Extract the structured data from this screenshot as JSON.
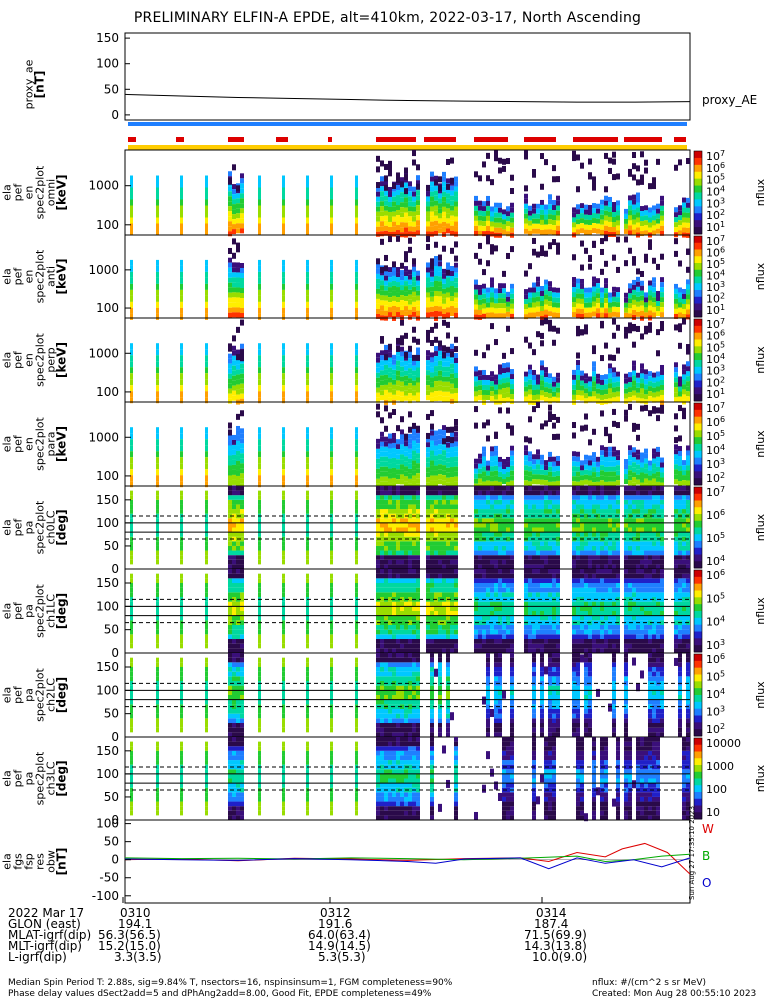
{
  "title": "PRELIMINARY ELFIN-A EPDE, alt=410km, 2022-03-17, North Ascending",
  "panels": [
    {
      "id": "proxy_ae",
      "ylabel": [
        "proxy_ae",
        "[nT]"
      ],
      "yticks": [
        "150",
        "100",
        "50",
        "0"
      ],
      "right_label": "proxy_AE",
      "type": "line"
    },
    {
      "id": "en0",
      "ylabel": [
        "ela",
        "pef",
        "en",
        "spec2plot",
        "omni",
        "[keV]"
      ],
      "yticks": [
        "1000",
        "100"
      ],
      "type": "spec",
      "colorbar": [
        "10^7",
        "10^6",
        "10^5",
        "10^4",
        "10^3",
        "10^2",
        "10^1"
      ],
      "cblabel": "nflux"
    },
    {
      "id": "en1",
      "ylabel": [
        "ela",
        "pef",
        "en",
        "spec2plot",
        "anti",
        "[keV]"
      ],
      "yticks": [
        "1000",
        "100"
      ],
      "type": "spec",
      "colorbar": [
        "10^7",
        "10^6",
        "10^5",
        "10^4",
        "10^3",
        "10^2",
        "10^1"
      ],
      "cblabel": "nflux"
    },
    {
      "id": "en2",
      "ylabel": [
        "ela",
        "pef",
        "en",
        "spec2plot",
        "perp",
        "[keV]"
      ],
      "yticks": [
        "1000",
        "100"
      ],
      "type": "spec",
      "colorbar": [
        "10^7",
        "10^6",
        "10^5",
        "10^4",
        "10^3",
        "10^2",
        "10^1"
      ],
      "cblabel": "nflux"
    },
    {
      "id": "en3",
      "ylabel": [
        "ela",
        "pef",
        "en",
        "spec2plot",
        "para",
        "[keV]"
      ],
      "yticks": [
        "1000",
        "100"
      ],
      "type": "spec",
      "colorbar": [
        "10^7",
        "10^6",
        "10^5",
        "10^4",
        "10^3",
        "10^2"
      ],
      "cblabel": "nflux"
    },
    {
      "id": "pa0",
      "ylabel": [
        "ela",
        "pef",
        "pa",
        "spec2plot",
        "ch0LC",
        "[deg]"
      ],
      "yticks": [
        "150",
        "100",
        "50",
        "0"
      ],
      "type": "pa",
      "colorbar": [
        "10^7",
        "10^6",
        "10^5",
        "10^4"
      ],
      "cblabel": "nflux"
    },
    {
      "id": "pa1",
      "ylabel": [
        "ela",
        "pef",
        "pa",
        "spec2plot",
        "ch1LC",
        "[deg]"
      ],
      "yticks": [
        "150",
        "100",
        "50",
        "0"
      ],
      "type": "pa",
      "colorbar": [
        "10^6",
        "10^5",
        "10^4",
        "10^3"
      ],
      "cblabel": "nflux"
    },
    {
      "id": "pa2",
      "ylabel": [
        "ela",
        "pef",
        "pa",
        "spec2plot",
        "ch2LC",
        "[deg]"
      ],
      "yticks": [
        "150",
        "100",
        "50",
        "0"
      ],
      "type": "pa",
      "colorbar": [
        "10^6",
        "10^5",
        "10^4",
        "10^3",
        "10^2"
      ],
      "cblabel": "nflux"
    },
    {
      "id": "pa3",
      "ylabel": [
        "ela",
        "pef",
        "pa",
        "spec2plot",
        "ch3LC",
        "[deg]"
      ],
      "yticks": [
        "150",
        "100",
        "50",
        "0"
      ],
      "type": "pa",
      "colorbar": [
        "10000",
        "1000",
        "100",
        "10"
      ],
      "cblabel": "nflux"
    },
    {
      "id": "fgs",
      "ylabel": [
        "ela",
        "fgs",
        "fsp",
        "res",
        "obw",
        "[nT]"
      ],
      "yticks": [
        "100",
        "50",
        "0",
        "-50",
        "-100"
      ],
      "type": "fgs",
      "legend": [
        "W",
        "B",
        "O"
      ]
    }
  ],
  "chart_data": {
    "type": "line",
    "title": "PRELIMINARY ELFIN-A EPDE, alt=410km, 2022-03-17, North Ascending",
    "proxy_ae": {
      "ylim": [
        -10,
        160
      ],
      "x": [
        0,
        0.1,
        0.2,
        0.3,
        0.4,
        0.5,
        0.6,
        0.7,
        0.8,
        0.9,
        1.0
      ],
      "y": [
        40,
        37,
        34,
        32,
        30,
        28,
        27,
        26,
        25,
        25,
        26
      ],
      "label": "proxy_AE"
    },
    "fgs_res": {
      "ylim": [
        -120,
        110
      ],
      "series": [
        {
          "name": "W",
          "color": "#dd0000",
          "x": [
            0,
            0.1,
            0.2,
            0.3,
            0.4,
            0.5,
            0.6,
            0.7,
            0.75,
            0.8,
            0.85,
            0.88,
            0.92,
            0.96,
            1.0
          ],
          "y": [
            0,
            2,
            -3,
            4,
            2,
            -2,
            3,
            5,
            -5,
            20,
            8,
            30,
            45,
            20,
            -40
          ]
        },
        {
          "name": "B",
          "color": "#00aa00",
          "x": [
            0,
            0.1,
            0.2,
            0.3,
            0.4,
            0.5,
            0.6,
            0.7,
            0.8,
            0.85,
            0.9,
            0.95,
            1.0
          ],
          "y": [
            5,
            3,
            4,
            2,
            5,
            3,
            0,
            4,
            10,
            -5,
            0,
            10,
            15
          ]
        },
        {
          "name": "O",
          "color": "#0000cc",
          "x": [
            0,
            0.1,
            0.2,
            0.3,
            0.4,
            0.5,
            0.55,
            0.6,
            0.7,
            0.75,
            0.8,
            0.85,
            0.9,
            0.95,
            1.0
          ],
          "y": [
            2,
            0,
            -2,
            3,
            0,
            -5,
            -10,
            2,
            5,
            -25,
            5,
            -10,
            0,
            -20,
            5
          ]
        }
      ]
    },
    "x_ticks": [
      "0310",
      "0312",
      "0314"
    ]
  },
  "side_stamp": "Sun Aug 27 17:35:10 2023",
  "footer": {
    "rows": [
      {
        "label": "2022 Mar 17",
        "v": [
          "0310",
          "0312",
          "0314"
        ]
      },
      {
        "label": "GLON (east)",
        "v": [
          "194.1",
          "191.6",
          "187.4"
        ]
      },
      {
        "label": "MLAT-igrf(dip)",
        "v": [
          "56.3(56.5)",
          "64.0(63.4)",
          "71.5(69.9)"
        ]
      },
      {
        "label": "MLT-igrf(dip)",
        "v": [
          "15.2(15.0)",
          "14.9(14.5)",
          "14.3(13.8)"
        ]
      },
      {
        "label": "L-igrf(dip)",
        "v": [
          "3.3(3.5)",
          "5.3(5.3)",
          "10.0(9.0)"
        ]
      }
    ],
    "note1": "Median Spin Period T: 2.88s, sig=9.84% T, nsectors=16, nspinsinsum=1, FGM completeness=90%",
    "note2": "Phase delay values dSect2add=5 and dPhAng2add=8.00, Good Fit, EPDE completeness=49%",
    "units": "nflux: #/(cm^2 s sr MeV)",
    "created": "Created: Mon Aug 28 00:55:10 2023"
  }
}
